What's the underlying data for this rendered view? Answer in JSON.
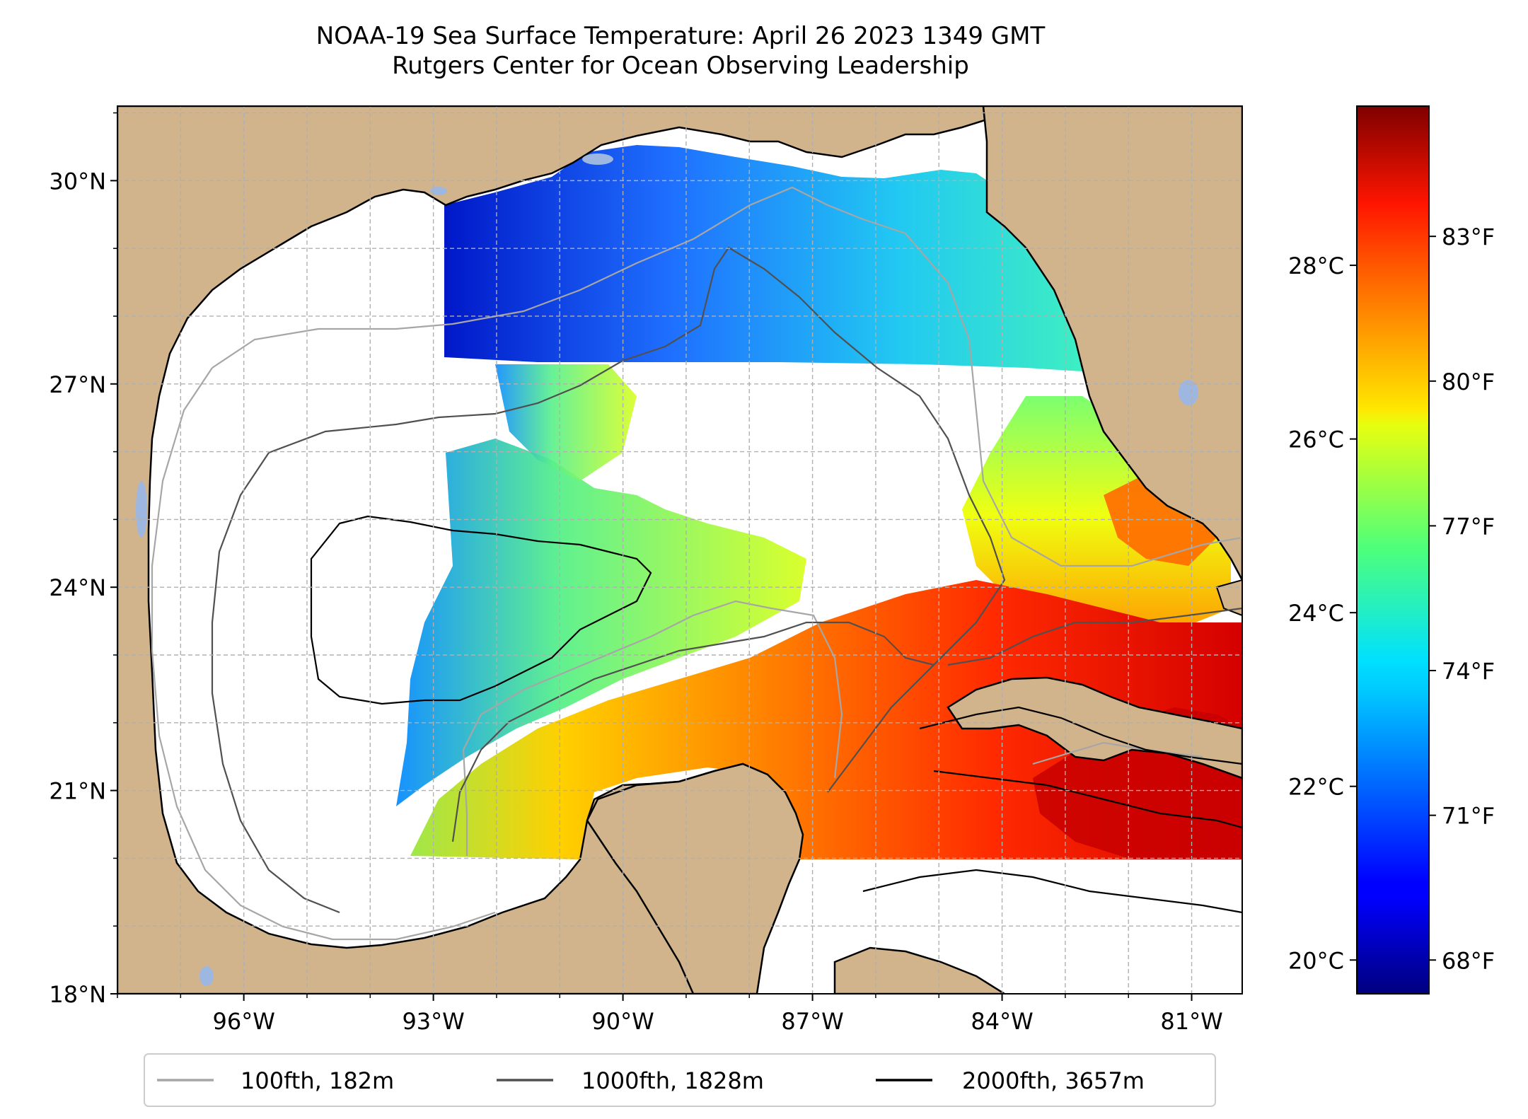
{
  "title": {
    "line1": "NOAA-19 Sea Surface Temperature: April 26 2023 1349 GMT",
    "line2": "Rutgers Center for Ocean Observing Leadership"
  },
  "map": {
    "lon_range": [
      -98.0,
      -80.2
    ],
    "lat_range": [
      18.0,
      31.1
    ],
    "lat_ticks": [
      {
        "value": 30,
        "label": "30°N"
      },
      {
        "value": 27,
        "label": "27°N"
      },
      {
        "value": 24,
        "label": "24°N"
      },
      {
        "value": 21,
        "label": "21°N"
      },
      {
        "value": 18,
        "label": "18°N"
      }
    ],
    "lon_ticks": [
      {
        "value": -96,
        "label": "96°W"
      },
      {
        "value": -93,
        "label": "93°W"
      },
      {
        "value": -90,
        "label": "90°W"
      },
      {
        "value": -87,
        "label": "87°W"
      },
      {
        "value": -84,
        "label": "84°W"
      },
      {
        "value": -81,
        "label": "81°W"
      }
    ],
    "grid": true,
    "colors": {
      "land": "#d2b48c",
      "ocean_no_data": "#ffffff",
      "lakes": "#9eb7e0",
      "coast": "#000000",
      "grid": "#b0b0b0"
    }
  },
  "colorbar": {
    "colormap": "jet",
    "celsius_ticks": [
      {
        "value": 20,
        "label": "20°C"
      },
      {
        "value": 22,
        "label": "22°C"
      },
      {
        "value": 24,
        "label": "24°C"
      },
      {
        "value": 26,
        "label": "26°C"
      },
      {
        "value": 28,
        "label": "28°C"
      }
    ],
    "fahrenheit_ticks": [
      {
        "value": 68,
        "label": "68°F"
      },
      {
        "value": 71,
        "label": "71°F"
      },
      {
        "value": 74,
        "label": "74°F"
      },
      {
        "value": 77,
        "label": "77°F"
      },
      {
        "value": 80,
        "label": "80°F"
      },
      {
        "value": 83,
        "label": "83°F"
      }
    ],
    "range_f": [
      67.3,
      85.7
    ]
  },
  "legend": {
    "entries": [
      {
        "label": "100fth, 182m",
        "color": "#a6a6a6"
      },
      {
        "label": "1000fth, 1828m",
        "color": "#505050"
      },
      {
        "label": "2000fth, 3657m",
        "color": "#000000"
      }
    ]
  }
}
